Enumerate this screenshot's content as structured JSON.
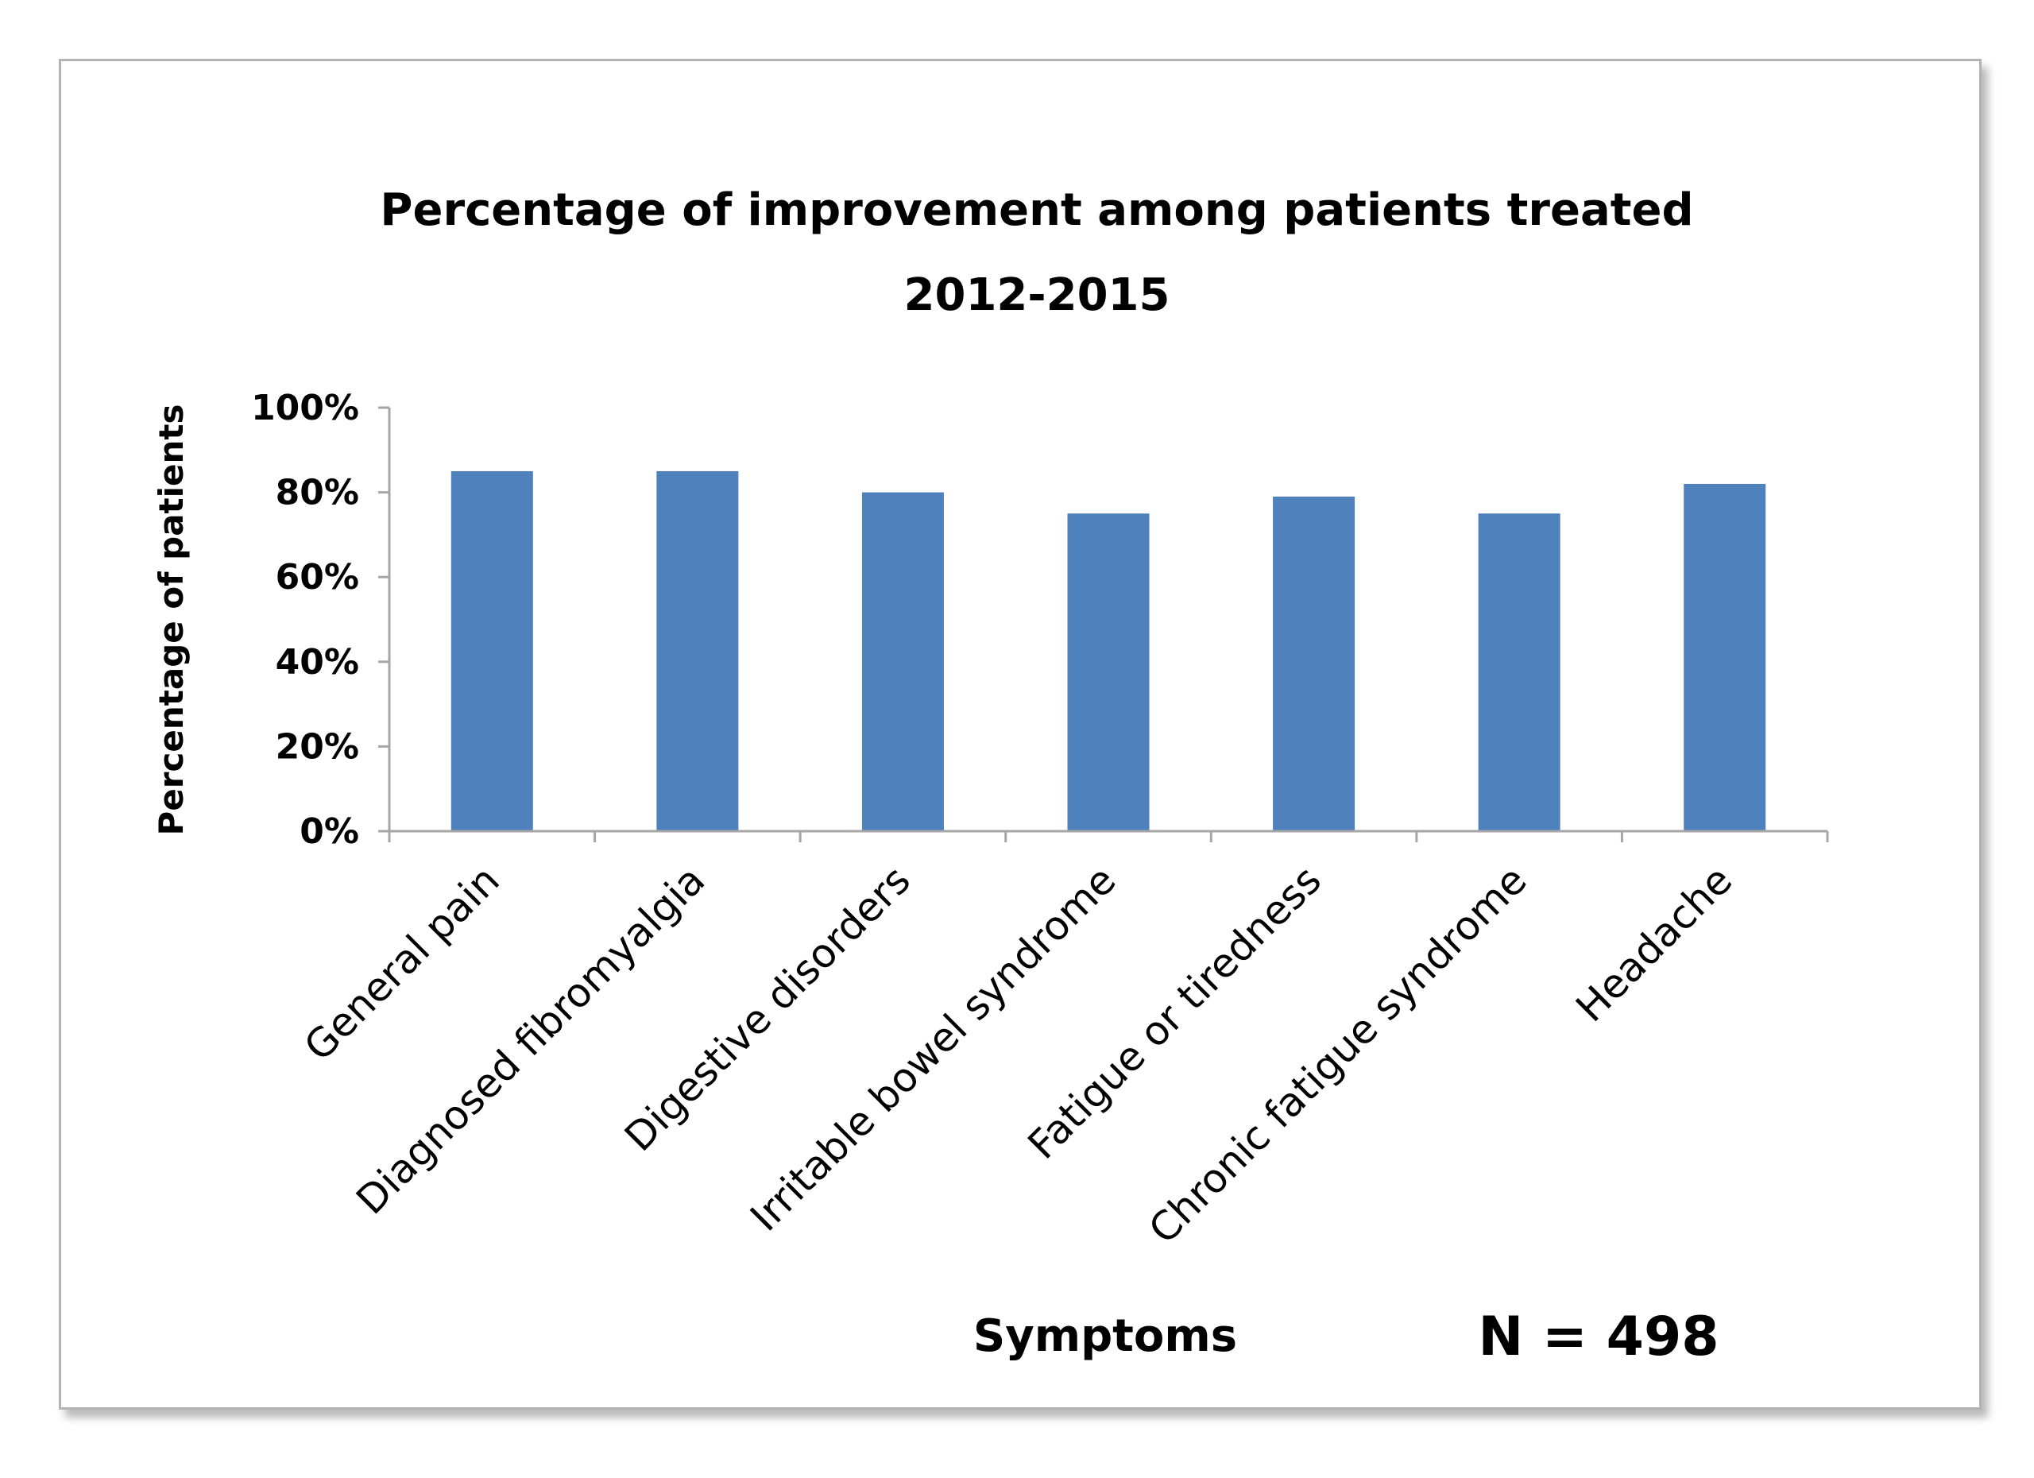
{
  "chart_data": {
    "type": "bar",
    "title_line1": "Percentage of improvement among patients treated",
    "title_line2": "2012-2015",
    "xlabel": "Symptoms",
    "ylabel": "Percentage of patients",
    "annotation": "N = 498",
    "categories": [
      "General pain",
      "Diagnosed fibromyalgia",
      "Digestive disorders",
      "Irritable bowel syndrome",
      "Fatigue or tiredness",
      "Chronic fatigue syndrome",
      "Headache"
    ],
    "values": [
      85,
      85,
      80,
      75,
      79,
      75,
      82
    ],
    "ylim": [
      0,
      100
    ],
    "yticks": [
      "0%",
      "20%",
      "40%",
      "60%",
      "80%",
      "100%"
    ],
    "ytick_values": [
      0,
      20,
      40,
      60,
      80,
      100
    ],
    "grid": false,
    "bar_color": "#4f81bd"
  }
}
